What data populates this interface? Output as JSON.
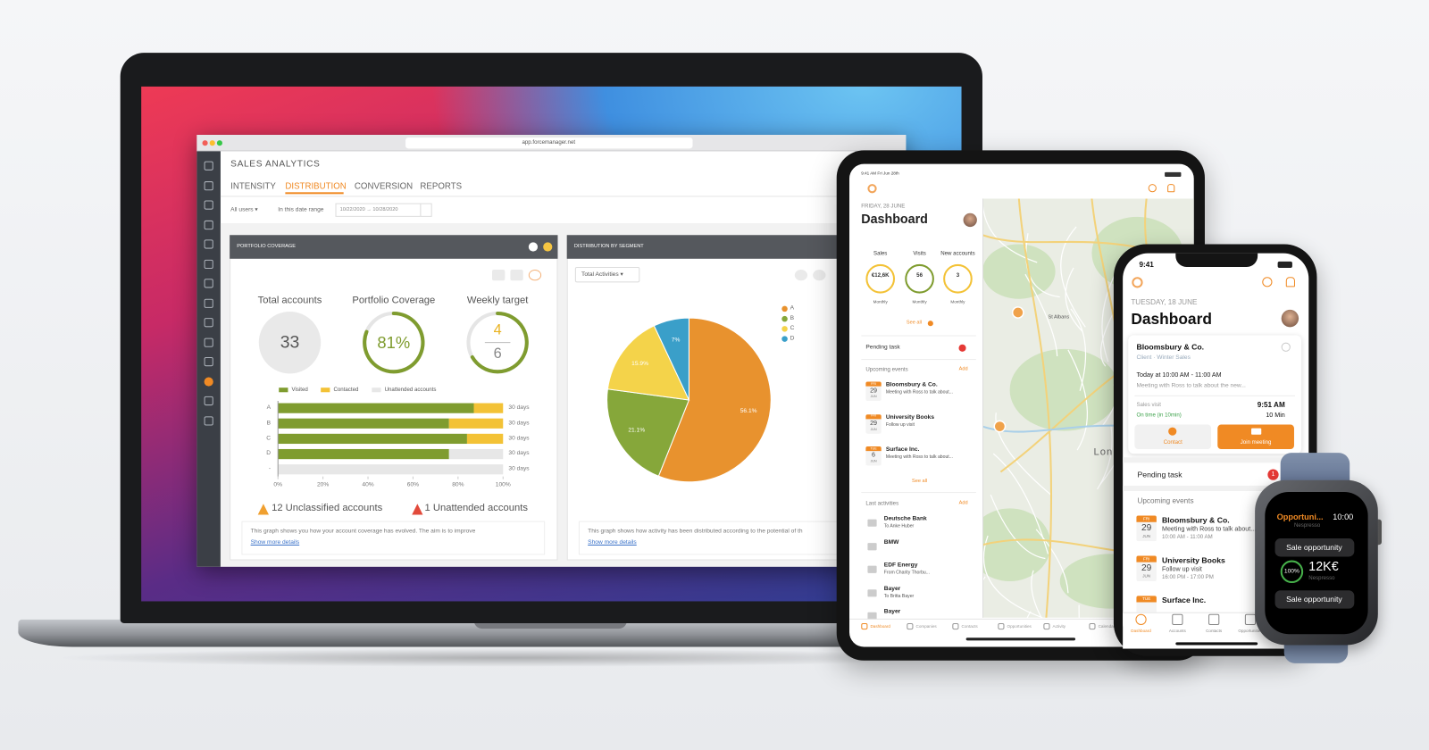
{
  "laptop": {
    "browser": {
      "url": "app.forcemanager.net"
    },
    "app_title": "SALES ANALYTICS",
    "tabs": [
      "INTENSITY",
      "DISTRIBUTION",
      "CONVERSION",
      "REPORTS"
    ],
    "active_tab": 1,
    "filters": {
      "users": "All users ▾",
      "range_label": "In this date range",
      "range": "10/22/2020 → 10/28/2020"
    },
    "portfolio": {
      "kpis": [
        {
          "label": "Total accounts",
          "value": 33
        },
        {
          "label": "Portfolio Coverage",
          "value": 81,
          "value_label": "81%"
        },
        {
          "label": "Weekly target",
          "value": 4,
          "target": 6
        }
      ],
      "warnings": [
        "12 Unclassified accounts",
        "1 Unattended accounts"
      ],
      "description": "This graph shows you how your account coverage has evolved. The aim is to improve",
      "link": "Show more details"
    },
    "distribution": {
      "dropdown": "Total Activities ▾",
      "description": "This graph shows how activity has been distributed according to the potential of th",
      "link": "Show more details"
    }
  },
  "tablet": {
    "status": "9:41 AM  Fri Jun 28th",
    "date": "FRIDAY, 28 JUNE",
    "title": "Dashboard",
    "kpis": [
      {
        "label": "Sales",
        "value": "€12,6K",
        "period": "Monthly"
      },
      {
        "label": "Visits",
        "value": "56",
        "period": "Monthly"
      },
      {
        "label": "New accounts",
        "value": "3",
        "period": "Monthly"
      }
    ],
    "see_all": "See all",
    "pending": "Pending task",
    "upcoming": "Upcoming events",
    "add": "Add",
    "events": [
      {
        "day": "FRI",
        "date": "29",
        "month": "JUN",
        "title": "Bloomsbury & Co.",
        "subtitle": "Meeting with Ross to talk about..."
      },
      {
        "day": "FRI",
        "date": "29",
        "month": "JUN",
        "title": "University Books",
        "subtitle": "Follow up visit"
      },
      {
        "day": "TUE",
        "date": "6",
        "month": "JUN",
        "title": "Surface Inc.",
        "subtitle": "Meeting with Ross to talk about..."
      }
    ],
    "see_all_events": "See all",
    "last": "Last activities",
    "add_activity": "Add",
    "activities": [
      {
        "title": "Deutsche Bank",
        "subtitle": "To Anke Huber"
      },
      {
        "title": "BMW"
      },
      {
        "title": "EDF Energy",
        "subtitle": "From Charity Thorbu..."
      },
      {
        "title": "Bayer",
        "subtitle": "To Britta Bayer"
      },
      {
        "title": "Bayer"
      }
    ],
    "map_labels": [
      "St Albans",
      "Lon"
    ],
    "tabs": [
      "Dashboard",
      "Companies",
      "Contacts",
      "Opportunities",
      "Activity",
      "Calendar"
    ]
  },
  "phone": {
    "time": "9:41",
    "date": "TUESDAY, 18 JUNE",
    "title": "Dashboard",
    "card": {
      "title": "Bloomsbury & Co.",
      "subtitle": "Client · Winter Sales",
      "when": "Today at 10:00 AM - 11:00 AM",
      "note": "Meeting with Ross to talk about the new...",
      "type": "Sales visit",
      "status": "On time (in 10min)",
      "time": "9:51 AM",
      "duration": "10 Min",
      "contact": "Contact",
      "join": "Join meeting"
    },
    "pending": "Pending task",
    "pending_count": "1",
    "upcoming": "Upcoming events",
    "events": [
      {
        "day": "FRI",
        "date": "29",
        "month": "JUN",
        "title": "Bloomsbury & Co.",
        "subtitle": "Meeting with Ross to talk about...",
        "time": "10:00 AM - 11:00 AM"
      },
      {
        "day": "FRI",
        "date": "29",
        "month": "JUN",
        "title": "University Books",
        "subtitle": "Follow up visit",
        "time": "16:00 PM - 17:00 PM"
      },
      {
        "day": "TUE",
        "title": "Surface Inc."
      }
    ],
    "tabs": [
      "Dashboard",
      "Accounts",
      "Contacts",
      "Opportunities"
    ]
  },
  "watch": {
    "title": "Opportuni...",
    "time": "10:00",
    "account": "Nespresso",
    "chip": "Sale opportunity",
    "percent": "100%",
    "amount": "12K€",
    "account2": "Nespresso",
    "chip2": "Sale opportunity"
  },
  "chart_data": [
    {
      "type": "bar",
      "orientation": "horizontal",
      "stacked": true,
      "title": "PORTFOLIO COVERAGE",
      "categories": [
        "A",
        "B",
        "C",
        "D",
        "-"
      ],
      "series": [
        {
          "name": "Visited",
          "color": "#7f9c2f",
          "values": [
            87,
            76,
            84,
            76,
            0
          ]
        },
        {
          "name": "Contacted",
          "color": "#f3c236",
          "values": [
            13,
            24,
            16,
            0,
            0
          ]
        },
        {
          "name": "Unattended accounts",
          "color": "#e7e7e7",
          "values": [
            0,
            0,
            0,
            24,
            100
          ]
        }
      ],
      "xlim": [
        0,
        100
      ],
      "xticks": [
        {
          "value": 0,
          "label": "0%"
        },
        {
          "value": 20,
          "label": "20%"
        },
        {
          "value": 40,
          "label": "40%"
        },
        {
          "value": 60,
          "label": "60%"
        },
        {
          "value": 80,
          "label": "80%"
        },
        {
          "value": 100,
          "label": "100%"
        }
      ],
      "row_notes": [
        "30 days",
        "30 days",
        "30 days",
        "30 days",
        "30 days"
      ]
    },
    {
      "type": "pie",
      "title": "DISTRIBUTION BY SEGMENT",
      "categories": [
        "A",
        "B",
        "C",
        "D"
      ],
      "values": [
        56.1,
        21.1,
        15.9,
        7
      ],
      "value_labels": [
        "56.1%",
        "21.1%",
        "15.9%",
        "7%"
      ],
      "colors": [
        "#e8922e",
        "#86a73a",
        "#f4d34a",
        "#3a9fc9"
      ]
    }
  ]
}
